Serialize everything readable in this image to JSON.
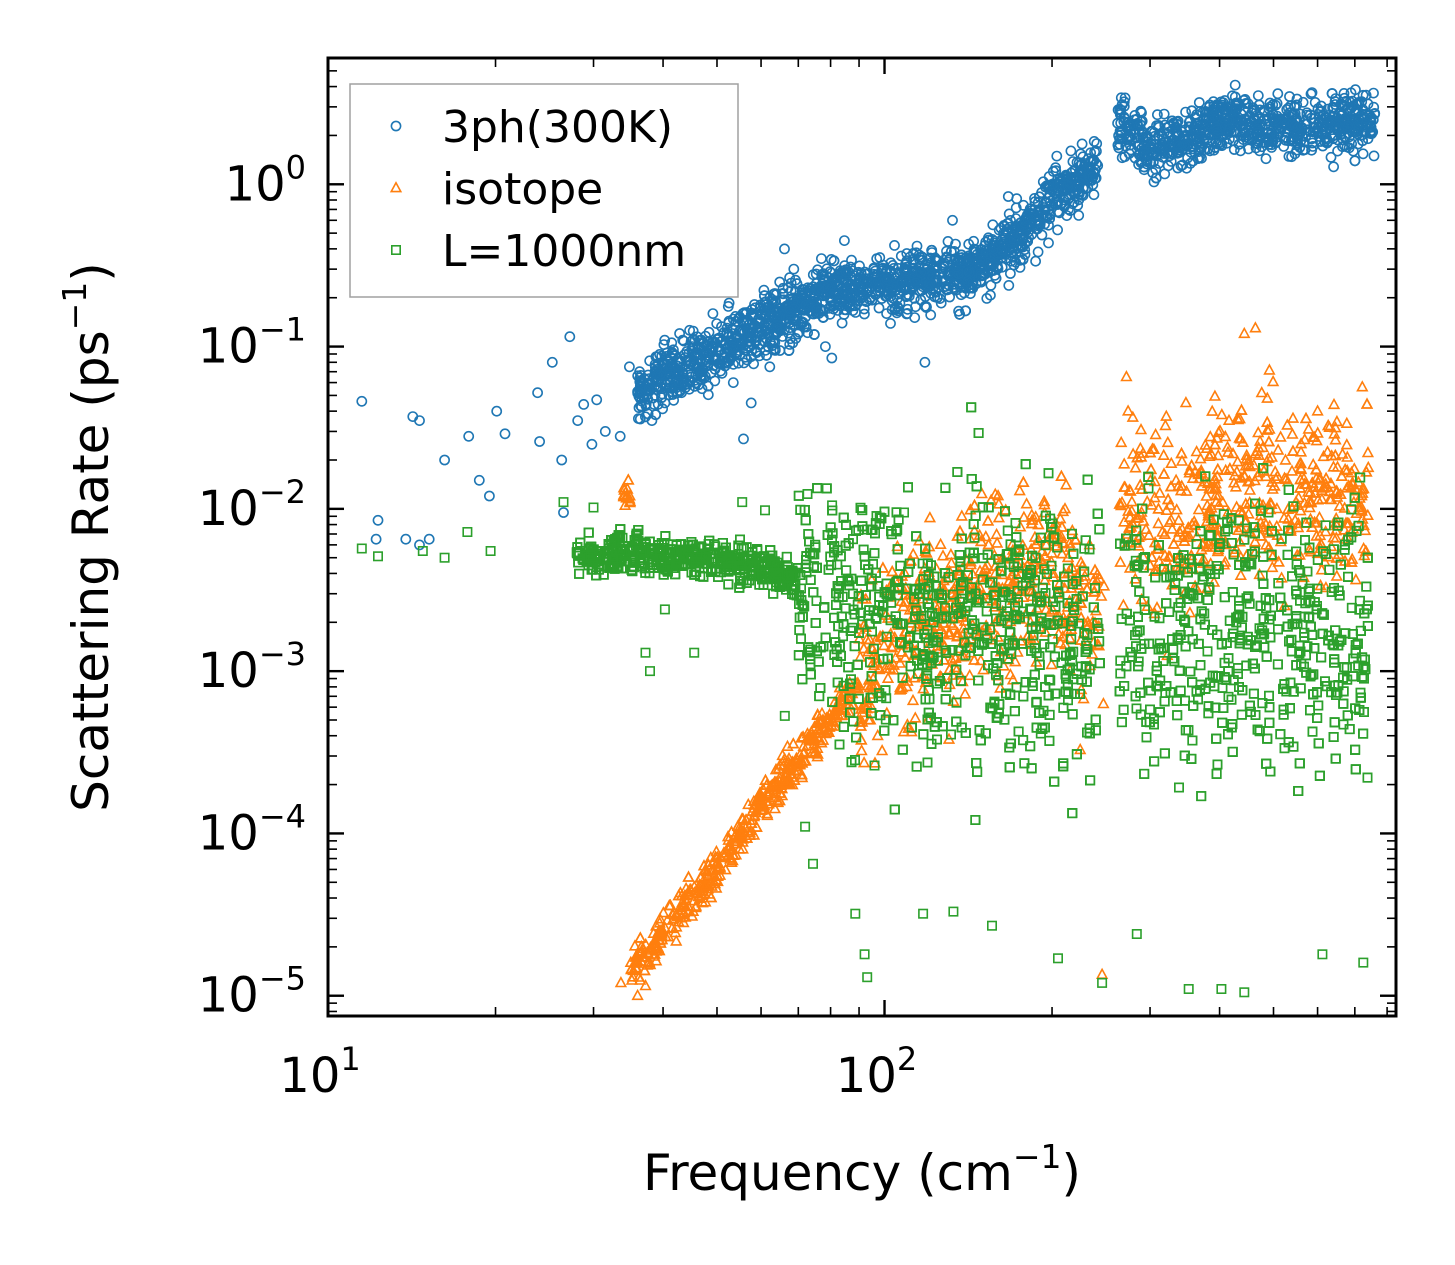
{
  "chart_data": {
    "type": "scatter",
    "title": "",
    "xlabel": "Frequency (cm",
    "xlabel_sup": "−1",
    "xlabel_end": ")",
    "ylabel": "Scattering Rate (ps",
    "ylabel_sup": "−1",
    "ylabel_end": ")",
    "xscale": "log",
    "yscale": "log",
    "xlim": [
      10,
      830
    ],
    "ylim": [
      7.5e-06,
      6.0
    ],
    "x_ticks": [
      {
        "value": 10,
        "base": "10",
        "exp": "1"
      },
      {
        "value": 100,
        "base": "10",
        "exp": "2"
      }
    ],
    "y_ticks": [
      {
        "value": 1,
        "base": "10",
        "exp": "0"
      },
      {
        "value": 0.1,
        "base": "10",
        "exp": "−1"
      },
      {
        "value": 0.01,
        "base": "10",
        "exp": "−2"
      },
      {
        "value": 0.001,
        "base": "10",
        "exp": "−3"
      },
      {
        "value": 0.0001,
        "base": "10",
        "exp": "−4"
      },
      {
        "value": 1e-05,
        "base": "10",
        "exp": "−5"
      }
    ],
    "legend_position": "top-left",
    "grid": false,
    "series": [
      {
        "name": "3ph(300K)",
        "marker": "circle",
        "color": "#1f77b4",
        "trend": [
          [
            11.5,
            0.045
          ],
          [
            14,
            0.035
          ],
          [
            20,
            0.03
          ],
          [
            30,
            0.035
          ],
          [
            40,
            0.065
          ],
          [
            60,
            0.13
          ],
          [
            80,
            0.22
          ],
          [
            100,
            0.24
          ],
          [
            150,
            0.3
          ],
          [
            200,
            0.8
          ],
          [
            240,
            1.3
          ],
          [
            260,
            2.6
          ],
          [
            300,
            1.6
          ],
          [
            400,
            2.5
          ],
          [
            500,
            2.2
          ],
          [
            700,
            2.4
          ]
        ],
        "points": [
          [
            11.5,
            0.046
          ],
          [
            12.2,
            0.0065
          ],
          [
            12.3,
            0.0085
          ],
          [
            13.8,
            0.0065
          ],
          [
            14.2,
            0.037
          ],
          [
            14.6,
            0.035
          ],
          [
            14.6,
            0.006
          ],
          [
            15.2,
            0.0065
          ],
          [
            16.2,
            0.02
          ],
          [
            17.9,
            0.028
          ],
          [
            18.7,
            0.015
          ],
          [
            19.5,
            0.012
          ],
          [
            20.1,
            0.04
          ],
          [
            20.8,
            0.029
          ],
          [
            23.8,
            0.052
          ],
          [
            24.0,
            0.026
          ],
          [
            25.3,
            0.08
          ],
          [
            26.3,
            0.02
          ],
          [
            26.5,
            0.0095
          ],
          [
            27.2,
            0.115
          ],
          [
            28.1,
            0.035
          ],
          [
            28.8,
            0.044
          ],
          [
            29.8,
            0.025
          ],
          [
            30.4,
            0.047
          ],
          [
            31.5,
            0.03
          ],
          [
            33.5,
            0.028
          ],
          [
            34.8,
            0.075
          ],
          [
            36.3,
            0.07
          ],
          [
            38.2,
            0.035
          ],
          [
            40.3,
            0.045
          ],
          [
            42.6,
            0.08
          ],
          [
            45.2,
            0.1
          ],
          [
            47.0,
            0.055
          ],
          [
            49.7,
            0.085
          ],
          [
            52.5,
            0.14
          ],
          [
            53.5,
            0.06
          ],
          [
            55.8,
            0.027
          ],
          [
            57.6,
            0.045
          ],
          [
            60.1,
            0.13
          ],
          [
            62.2,
            0.075
          ],
          [
            64.8,
            0.25
          ],
          [
            66.1,
            0.4
          ],
          [
            68.7,
            0.3
          ],
          [
            72.2,
            0.18
          ],
          [
            75.6,
            0.17
          ],
          [
            78.3,
            0.1
          ],
          [
            80.4,
            0.085
          ],
          [
            84.7,
            0.45
          ],
          [
            95.7,
            0.3
          ],
          [
            104.2,
            0.42
          ],
          [
            118.2,
            0.08
          ],
          [
            132.5,
            0.6
          ],
          [
            155.0,
            0.35
          ],
          [
            201.0,
            1.2
          ],
          [
            235.0,
            1.4
          ]
        ]
      },
      {
        "name": "isotope",
        "marker": "triangle",
        "color": "#ff7f0e",
        "trend": [
          [
            35,
            1.4e-05
          ],
          [
            40,
            2.5e-05
          ],
          [
            50,
            6e-05
          ],
          [
            60,
            0.00015
          ],
          [
            80,
            0.0005
          ],
          [
            100,
            0.0015
          ],
          [
            150,
            0.003
          ],
          [
            200,
            0.004
          ],
          [
            240,
            0.002
          ],
          [
            270,
            0.01
          ],
          [
            350,
            0.008
          ],
          [
            440,
            0.015
          ],
          [
            600,
            0.012
          ]
        ],
        "points": [
          [
            33.6,
            1.2e-05
          ],
          [
            35.0,
            1.6e-05
          ],
          [
            36.0,
            1e-05
          ],
          [
            37.2,
            1.15e-05
          ],
          [
            56.5,
            0.00012
          ],
          [
            160,
            0.012
          ],
          [
            212,
            0.014
          ],
          [
            246,
            1.35e-05
          ],
          [
            272,
            0.065
          ],
          [
            274,
            0.04
          ],
          [
            348,
            0.045
          ],
          [
            443,
            0.12
          ],
          [
            464,
            0.13
          ],
          [
            600,
            0.04
          ]
        ]
      },
      {
        "name": "L=1000nm",
        "marker": "square",
        "color": "#2ca02c",
        "trend": [
          [
            11.5,
            0.0055
          ],
          [
            20,
            0.0055
          ],
          [
            40,
            0.0052
          ],
          [
            60,
            0.0045
          ],
          [
            80,
            0.003
          ],
          [
            100,
            0.002
          ],
          [
            150,
            0.002
          ],
          [
            235,
            0.0015
          ],
          [
            300,
            0.0018
          ],
          [
            500,
            0.0015
          ],
          [
            720,
            0.002
          ]
        ],
        "points": [
          [
            11.5,
            0.0057
          ],
          [
            12.3,
            0.0051
          ],
          [
            14.8,
            0.0055
          ],
          [
            16.2,
            0.005
          ],
          [
            17.8,
            0.0072
          ],
          [
            19.6,
            0.0055
          ],
          [
            26.5,
            0.011
          ],
          [
            30.0,
            0.0102
          ],
          [
            37.2,
            0.0013
          ],
          [
            37.9,
            0.001
          ],
          [
            40.3,
            0.0024
          ],
          [
            45.5,
            0.0013
          ],
          [
            55.5,
            0.011
          ],
          [
            61.0,
            0.0098
          ],
          [
            66.2,
            0.00053
          ],
          [
            72.0,
            0.00011
          ],
          [
            74.4,
            6.5e-05
          ],
          [
            80.5,
            0.0105
          ],
          [
            88.6,
            3.2e-05
          ],
          [
            92.1,
            1.8e-05
          ],
          [
            93.1,
            1.3e-05
          ],
          [
            108.4,
            0.0095
          ],
          [
            117.3,
            3.2e-05
          ],
          [
            133,
            3.3e-05
          ],
          [
            156,
            2.7e-05
          ],
          [
            205,
            1.7e-05
          ],
          [
            246,
            1.2e-05
          ],
          [
            284,
            2.4e-05
          ],
          [
            352,
            1.1e-05
          ],
          [
            403,
            1.1e-05
          ],
          [
            443,
            1.05e-05
          ],
          [
            612,
            1.8e-05
          ],
          [
            725,
            1.6e-05
          ],
          [
            727,
            0.0009
          ]
        ]
      }
    ]
  }
}
